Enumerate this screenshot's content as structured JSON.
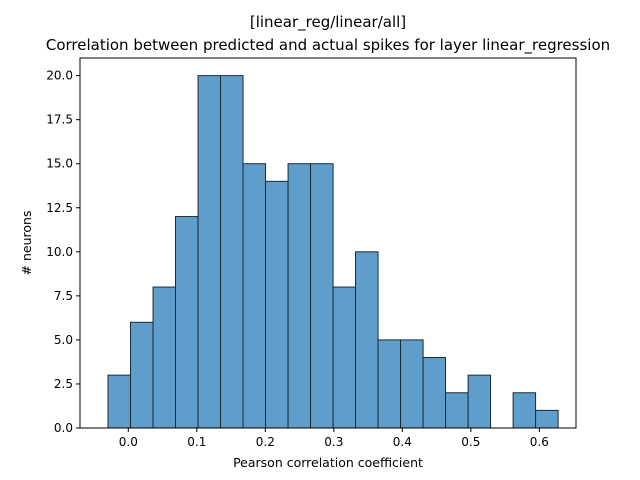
{
  "chart_data": {
    "type": "bar",
    "title_line1": "[linear_reg/linear/all]",
    "title_line2": "Correlation between predicted and actual spikes for layer linear_regression",
    "xlabel": "Pearson correlation coefficient",
    "ylabel": "# neurons",
    "xlim": [
      -0.0705,
      0.6535
    ],
    "ylim": [
      0,
      21
    ],
    "xticks": [
      0.0,
      0.1,
      0.2,
      0.3,
      0.4,
      0.5,
      0.6
    ],
    "xtick_labels": [
      "0.0",
      "0.1",
      "0.2",
      "0.3",
      "0.4",
      "0.5",
      "0.6"
    ],
    "yticks": [
      0,
      2.5,
      5,
      7.5,
      10,
      12.5,
      15,
      17.5,
      20
    ],
    "ytick_labels": [
      "0.0",
      "2.5",
      "5.0",
      "7.5",
      "10.0",
      "12.5",
      "15.0",
      "17.5",
      "20.0"
    ],
    "bin_edges": [
      -0.0296,
      0.0032,
      0.0361,
      0.0689,
      0.1018,
      0.1346,
      0.1675,
      0.2003,
      0.2332,
      0.266,
      0.2989,
      0.3317,
      0.3646,
      0.3974,
      0.4303,
      0.4631,
      0.496,
      0.5288,
      0.5617,
      0.5945,
      0.6274
    ],
    "values": [
      3,
      6,
      8,
      12,
      20,
      20,
      15,
      14,
      15,
      15,
      8,
      10,
      5,
      5,
      4,
      2,
      3,
      0,
      2,
      1
    ],
    "bar_color": "#5f9ecb",
    "bar_edge_color": "#1b2a36",
    "grid": false,
    "legend": false
  }
}
